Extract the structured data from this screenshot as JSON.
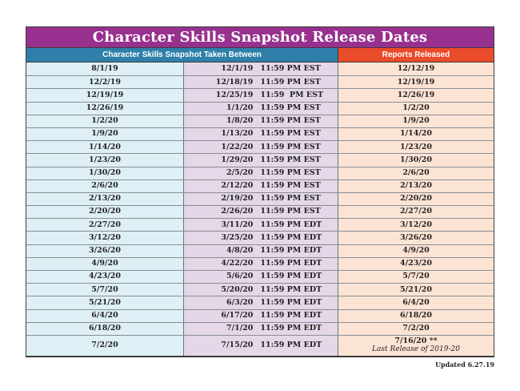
{
  "theme": {
    "purple": "#97308f",
    "blue": "#2e7fa9",
    "orange": "#ea4b2a",
    "col-start-bg": "#def0f6",
    "col-end-bg": "#e4d7e7",
    "col-released-bg": "#fce4d4",
    "text-dark": "#231f20"
  },
  "title": "Character Skills Snapshot Release Dates",
  "headers": {
    "taken_between": "Character Skills Snapshot Taken Between",
    "reports_released": "Reports Released"
  },
  "rows": [
    {
      "start": "8/1/19",
      "end_date": "12/1/19",
      "end_time": "11:59 PM EST",
      "released": "12/12/19"
    },
    {
      "start": "12/2/19",
      "end_date": "12/18/19",
      "end_time": "11:59 PM EST",
      "released": "12/19/19"
    },
    {
      "start": "12/19/19",
      "end_date": "12/25/19",
      "end_time": "11:59  PM EST",
      "released": "12/26/19"
    },
    {
      "start": "12/26/19",
      "end_date": "1/1/20",
      "end_time": "11:59 PM EST",
      "released": "1/2/20"
    },
    {
      "start": "1/2/20",
      "end_date": "1/8/20",
      "end_time": "11:59 PM EST",
      "released": "1/9/20"
    },
    {
      "start": "1/9/20",
      "end_date": "1/13/20",
      "end_time": "11:59 PM EST",
      "released": "1/14/20"
    },
    {
      "start": "1/14/20",
      "end_date": "1/22/20",
      "end_time": "11:59 PM EST",
      "released": "1/23/20"
    },
    {
      "start": "1/23/20",
      "end_date": "1/29/20",
      "end_time": "11:59 PM EST",
      "released": "1/30/20"
    },
    {
      "start": "1/30/20",
      "end_date": "2/5/20",
      "end_time": "11:59 PM EST",
      "released": "2/6/20"
    },
    {
      "start": "2/6/20",
      "end_date": "2/12/20",
      "end_time": "11:59 PM EST",
      "released": "2/13/20"
    },
    {
      "start": "2/13/20",
      "end_date": "2/19/20",
      "end_time": "11:59 PM EST",
      "released": "2/20/20"
    },
    {
      "start": "2/20/20",
      "end_date": "2/26/20",
      "end_time": "11:59 PM EST",
      "released": "2/27/20"
    },
    {
      "start": "2/27/20",
      "end_date": "3/11/20",
      "end_time": "11:59 PM EDT",
      "released": "3/12/20"
    },
    {
      "start": "3/12/20",
      "end_date": "3/25/20",
      "end_time": "11:59 PM EDT",
      "released": "3/26/20"
    },
    {
      "start": "3/26/20",
      "end_date": "4/8/20",
      "end_time": "11:59 PM EDT",
      "released": "4/9/20"
    },
    {
      "start": "4/9/20",
      "end_date": "4/22/20",
      "end_time": "11:59 PM EDT",
      "released": "4/23/20"
    },
    {
      "start": "4/23/20",
      "end_date": "5/6/20",
      "end_time": "11:59 PM EDT",
      "released": "5/7/20"
    },
    {
      "start": "5/7/20",
      "end_date": "5/20/20",
      "end_time": "11:59 PM EDT",
      "released": "5/21/20"
    },
    {
      "start": "5/21/20",
      "end_date": "6/3/20",
      "end_time": "11:59 PM EDT",
      "released": "6/4/20"
    },
    {
      "start": "6/4/20",
      "end_date": "6/17/20",
      "end_time": "11:59 PM EDT",
      "released": "6/18/20"
    },
    {
      "start": "6/18/20",
      "end_date": "7/1/20",
      "end_time": "11:59 PM EDT",
      "released": "7/2/20"
    },
    {
      "start": "7/2/20",
      "end_date": "7/15/20",
      "end_time": "11:59 PM EDT",
      "released": "7/16/20 **",
      "released_note": "Last Release of 2019-20"
    }
  ],
  "footer": {
    "updated": "Updated 6.27.19"
  }
}
